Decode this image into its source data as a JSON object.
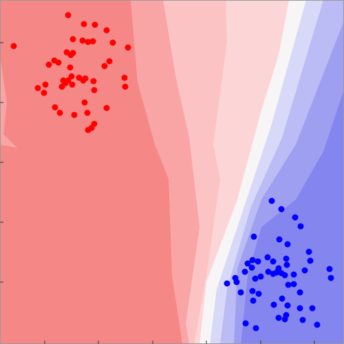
{
  "chart_data": {
    "type": "scatter",
    "xlim": [
      0,
      500
    ],
    "ylim": [
      0,
      500
    ],
    "xticks": [
      65,
      143,
      222,
      300,
      379,
      457
    ],
    "yticks": [
      90,
      177,
      264,
      351,
      438
    ],
    "series": [
      {
        "color": "#ff0000",
        "x": [
          99,
          122,
          138,
          155,
          20,
          106,
          120,
          128,
          135,
          164,
          186,
          97,
          103,
          106,
          79,
          71,
          85,
          159,
          152,
          102,
          104,
          115,
          124,
          121,
          136,
          92,
          99,
          95,
          90,
          66,
          55,
          64,
          105,
          137,
          181,
          182,
          123,
          155,
          80,
          87,
          108,
          127,
          137,
          133,
          128
        ],
        "y": [
          478,
          465,
          464,
          456,
          433,
          443,
          441,
          439,
          440,
          438,
          431,
          424,
          420,
          423,
          412,
          406,
          409,
          411,
          404,
          402,
          389,
          387,
          386,
          383,
          382,
          383,
          383,
          379,
          374,
          377,
          372,
          365,
          377,
          369,
          387,
          374,
          351,
          343,
          344,
          336,
          333,
          336,
          320,
          314,
          311
        ]
      },
      {
        "color": "#0000ff",
        "x": [
          395,
          409,
          429,
          437,
          369,
          406,
          418,
          389,
          367,
          449,
          360,
          375,
          397,
          416,
          451,
          417,
          366,
          405,
          390,
          397,
          402,
          409,
          427,
          414,
          443,
          479,
          481,
          356,
          379,
          342,
          344,
          371,
          330,
          419,
          427,
          367,
          350,
          376,
          436,
          410,
          368,
          398,
          418,
          436,
          454,
          416,
          440,
          405,
          414,
          357,
          372,
          461
        ],
        "y": [
          208,
          196,
          184,
          171,
          156,
          152,
          145,
          126,
          122,
          134,
          117,
          120,
          120,
          124,
          121,
          115,
          111,
          110,
          105,
          102,
          104,
          103,
          101,
          100,
          107,
          109,
          96,
          105,
          98,
          96,
          90,
          95,
          88,
          86,
          87,
          77,
          75,
          73,
          75,
          66,
          63,
          57,
          56,
          52,
          52,
          42,
          35,
          38,
          36,
          30,
          23,
          28
        ]
      }
    ]
  }
}
